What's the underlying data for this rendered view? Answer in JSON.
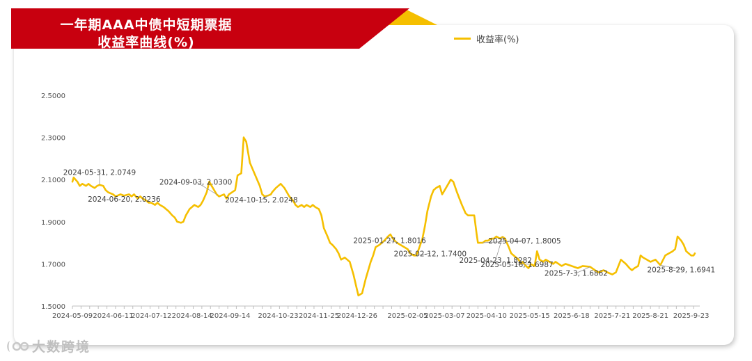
{
  "header": {
    "title_line1": "一年期AAA中债中短期票据",
    "title_line2": "收益率曲线(%)",
    "banner_color": "#C8000F",
    "banner_accent": "#F5BF00"
  },
  "watermark": {
    "text": "大数跨境"
  },
  "chart_data": {
    "type": "line",
    "series": [
      {
        "name": "收益率(%)",
        "color": "#F5BF00",
        "values": [
          [
            "2024-05-09",
            2.09
          ],
          [
            "2024-05-10",
            2.11
          ],
          [
            "2024-05-13",
            2.09
          ],
          [
            "2024-05-15",
            2.07
          ],
          [
            "2024-05-17",
            2.08
          ],
          [
            "2024-05-20",
            2.07
          ],
          [
            "2024-05-22",
            2.08
          ],
          [
            "2024-05-24",
            2.07
          ],
          [
            "2024-05-27",
            2.06
          ],
          [
            "2024-05-29",
            2.07
          ],
          [
            "2024-05-31",
            2.0749
          ],
          [
            "2024-06-03",
            2.07
          ],
          [
            "2024-06-05",
            2.05
          ],
          [
            "2024-06-07",
            2.04
          ],
          [
            "2024-06-11",
            2.03
          ],
          [
            "2024-06-13",
            2.02
          ],
          [
            "2024-06-17",
            2.03
          ],
          [
            "2024-06-20",
            2.0236
          ],
          [
            "2024-06-24",
            2.03
          ],
          [
            "2024-06-26",
            2.02
          ],
          [
            "2024-06-28",
            2.03
          ],
          [
            "2024-07-01",
            2.01
          ],
          [
            "2024-07-03",
            2.02
          ],
          [
            "2024-07-05",
            2.01
          ],
          [
            "2024-07-08",
            2.0
          ],
          [
            "2024-07-10",
            1.99
          ],
          [
            "2024-07-12",
            1.99
          ],
          [
            "2024-07-15",
            1.98
          ],
          [
            "2024-07-17",
            1.99
          ],
          [
            "2024-07-19",
            1.98
          ],
          [
            "2024-07-22",
            1.97
          ],
          [
            "2024-07-24",
            1.96
          ],
          [
            "2024-07-26",
            1.95
          ],
          [
            "2024-07-29",
            1.93
          ],
          [
            "2024-07-31",
            1.92
          ],
          [
            "2024-08-02",
            1.9
          ],
          [
            "2024-08-05",
            1.895
          ],
          [
            "2024-08-07",
            1.9
          ],
          [
            "2024-08-09",
            1.93
          ],
          [
            "2024-08-12",
            1.96
          ],
          [
            "2024-08-14",
            1.97
          ],
          [
            "2024-08-16",
            1.98
          ],
          [
            "2024-08-19",
            1.97
          ],
          [
            "2024-08-21",
            1.98
          ],
          [
            "2024-08-23",
            2.0
          ],
          [
            "2024-08-26",
            2.04
          ],
          [
            "2024-08-28",
            2.09
          ],
          [
            "2024-08-30",
            2.07
          ],
          [
            "2024-09-03",
            2.03
          ],
          [
            "2024-09-05",
            2.02
          ],
          [
            "2024-09-09",
            2.03
          ],
          [
            "2024-09-11",
            2.01
          ],
          [
            "2024-09-13",
            2.03
          ],
          [
            "2024-09-18",
            2.05
          ],
          [
            "2024-09-20",
            2.12
          ],
          [
            "2024-09-23",
            2.13
          ],
          [
            "2024-09-25",
            2.3
          ],
          [
            "2024-09-27",
            2.28
          ],
          [
            "2024-09-30",
            2.18
          ],
          [
            "2024-10-08",
            2.07
          ],
          [
            "2024-10-10",
            2.03
          ],
          [
            "2024-10-12",
            2.02
          ],
          [
            "2024-10-15",
            2.0248
          ],
          [
            "2024-10-17",
            2.03
          ],
          [
            "2024-10-18",
            2.04
          ],
          [
            "2024-10-21",
            2.06
          ],
          [
            "2024-10-23",
            2.07
          ],
          [
            "2024-10-25",
            2.08
          ],
          [
            "2024-10-28",
            2.06
          ],
          [
            "2024-10-30",
            2.04
          ],
          [
            "2024-11-01",
            2.02
          ],
          [
            "2024-11-04",
            2.0
          ],
          [
            "2024-11-06",
            1.98
          ],
          [
            "2024-11-08",
            1.97
          ],
          [
            "2024-11-11",
            1.98
          ],
          [
            "2024-11-13",
            1.97
          ],
          [
            "2024-11-15",
            1.98
          ],
          [
            "2024-11-18",
            1.97
          ],
          [
            "2024-11-20",
            1.98
          ],
          [
            "2024-11-22",
            1.97
          ],
          [
            "2024-11-25",
            1.96
          ],
          [
            "2024-11-27",
            1.93
          ],
          [
            "2024-11-29",
            1.87
          ],
          [
            "2024-12-02",
            1.83
          ],
          [
            "2024-12-04",
            1.8
          ],
          [
            "2024-12-06",
            1.79
          ],
          [
            "2024-12-09",
            1.77
          ],
          [
            "2024-12-11",
            1.75
          ],
          [
            "2024-12-13",
            1.72
          ],
          [
            "2024-12-16",
            1.73
          ],
          [
            "2024-12-18",
            1.72
          ],
          [
            "2024-12-20",
            1.71
          ],
          [
            "2024-12-23",
            1.65
          ],
          [
            "2024-12-25",
            1.6
          ],
          [
            "2024-12-27",
            1.55
          ],
          [
            "2024-12-30",
            1.56
          ],
          [
            "2025-01-02",
            1.63
          ],
          [
            "2025-01-06",
            1.71
          ],
          [
            "2025-01-08",
            1.74
          ],
          [
            "2025-01-10",
            1.78
          ],
          [
            "2025-01-13",
            1.79
          ],
          [
            "2025-01-15",
            1.8
          ],
          [
            "2025-01-17",
            1.81
          ],
          [
            "2025-01-20",
            1.83
          ],
          [
            "2025-01-22",
            1.84
          ],
          [
            "2025-01-24",
            1.82
          ],
          [
            "2025-01-27",
            1.8016
          ],
          [
            "2025-02-05",
            1.77
          ],
          [
            "2025-02-07",
            1.75
          ],
          [
            "2025-02-10",
            1.74
          ],
          [
            "2025-02-12",
            1.74
          ],
          [
            "2025-02-14",
            1.77
          ],
          [
            "2025-02-17",
            1.82
          ],
          [
            "2025-02-19",
            1.88
          ],
          [
            "2025-02-21",
            1.95
          ],
          [
            "2025-02-24",
            2.02
          ],
          [
            "2025-02-26",
            2.05
          ],
          [
            "2025-02-28",
            2.06
          ],
          [
            "2025-03-03",
            2.07
          ],
          [
            "2025-03-05",
            2.03
          ],
          [
            "2025-03-07",
            2.05
          ],
          [
            "2025-03-10",
            2.08
          ],
          [
            "2025-03-12",
            2.1
          ],
          [
            "2025-03-14",
            2.09
          ],
          [
            "2025-03-17",
            2.04
          ],
          [
            "2025-03-19",
            2.01
          ],
          [
            "2025-03-21",
            1.98
          ],
          [
            "2025-03-24",
            1.94
          ],
          [
            "2025-03-26",
            1.93
          ],
          [
            "2025-03-28",
            1.93
          ],
          [
            "2025-03-31",
            1.93
          ],
          [
            "2025-04-02",
            1.84
          ],
          [
            "2025-04-03",
            1.8
          ],
          [
            "2025-04-07",
            1.8005
          ],
          [
            "2025-04-09",
            1.81
          ],
          [
            "2025-04-11",
            1.81
          ],
          [
            "2025-04-14",
            1.82
          ],
          [
            "2025-04-16",
            1.82
          ],
          [
            "2025-04-18",
            1.83
          ],
          [
            "2025-04-21",
            1.82
          ],
          [
            "2025-04-23",
            1.8282
          ],
          [
            "2025-04-25",
            1.82
          ],
          [
            "2025-04-28",
            1.78
          ],
          [
            "2025-04-30",
            1.75
          ],
          [
            "2025-05-06",
            1.72
          ],
          [
            "2025-05-08",
            1.7
          ],
          [
            "2025-05-09",
            1.71
          ],
          [
            "2025-05-12",
            1.69
          ],
          [
            "2025-05-14",
            1.68
          ],
          [
            "2025-05-16",
            1.6987
          ],
          [
            "2025-05-19",
            1.69
          ],
          [
            "2025-05-21",
            1.76
          ],
          [
            "2025-05-23",
            1.72
          ],
          [
            "2025-05-26",
            1.71
          ],
          [
            "2025-05-28",
            1.72
          ],
          [
            "2025-06-03",
            1.7
          ],
          [
            "2025-06-05",
            1.71
          ],
          [
            "2025-06-10",
            1.69
          ],
          [
            "2025-06-13",
            1.7
          ],
          [
            "2025-06-18",
            1.69
          ],
          [
            "2025-06-23",
            1.68
          ],
          [
            "2025-06-27",
            1.69
          ],
          [
            "2025-07-03",
            1.6862
          ],
          [
            "2025-07-07",
            1.67
          ],
          [
            "2025-07-10",
            1.66
          ],
          [
            "2025-07-14",
            1.67
          ],
          [
            "2025-07-17",
            1.66
          ],
          [
            "2025-07-21",
            1.65
          ],
          [
            "2025-07-24",
            1.66
          ],
          [
            "2025-07-28",
            1.72
          ],
          [
            "2025-07-30",
            1.71
          ],
          [
            "2025-08-01",
            1.7
          ],
          [
            "2025-08-04",
            1.68
          ],
          [
            "2025-08-06",
            1.67
          ],
          [
            "2025-08-08",
            1.68
          ],
          [
            "2025-08-11",
            1.69
          ],
          [
            "2025-08-13",
            1.74
          ],
          [
            "2025-08-15",
            1.73
          ],
          [
            "2025-08-18",
            1.72
          ],
          [
            "2025-08-21",
            1.71
          ],
          [
            "2025-08-25",
            1.72
          ],
          [
            "2025-08-29",
            1.6941
          ],
          [
            "2025-09-02",
            1.74
          ],
          [
            "2025-09-05",
            1.75
          ],
          [
            "2025-09-08",
            1.76
          ],
          [
            "2025-09-10",
            1.77
          ],
          [
            "2025-09-12",
            1.83
          ],
          [
            "2025-09-15",
            1.81
          ],
          [
            "2025-09-17",
            1.79
          ],
          [
            "2025-09-19",
            1.76
          ],
          [
            "2025-09-23",
            1.74
          ],
          [
            "2025-09-25",
            1.74
          ],
          [
            "2025-09-26",
            1.75
          ]
        ]
      }
    ],
    "ylim": [
      1.5,
      2.5
    ],
    "yticks": [
      "2.5000",
      "2.3000",
      "2.1000",
      "1.9000",
      "1.7000",
      "1.5000"
    ],
    "xticks": [
      [
        "2024-05-09",
        "2024-05-09"
      ],
      [
        "2024-06-11",
        "2024-06-11"
      ],
      [
        "2024-07-12",
        "2024-07-12"
      ],
      [
        "2024-08-14",
        "2024-08-14"
      ],
      [
        "2024-09-14",
        "2024-09-14"
      ],
      [
        "2024-10-23",
        "2024-10-23"
      ],
      [
        "2024-11-25",
        "2024-11-25"
      ],
      [
        "2024-12-26",
        "2024-12-26"
      ],
      [
        "2025-02-05",
        "2025-02-05"
      ],
      [
        "2025-03-07",
        "2025-03-07"
      ],
      [
        "2025-04-10",
        "2025-04-10"
      ],
      [
        "2025-05-15",
        "2025-05-15"
      ],
      [
        "2025-06-18",
        "2025-6-18"
      ],
      [
        "2025-07-21",
        "2025-7-21"
      ],
      [
        "2025-08-21",
        "2025-8-21"
      ],
      [
        "2025-09-23",
        "2025-9-23"
      ]
    ],
    "annotations": [
      {
        "x": "2024-05-31",
        "y": 2.0749,
        "text": "2024-05-31, 2.0749",
        "dx": 0,
        "dy": 0.05
      },
      {
        "x": "2024-06-20",
        "y": 2.0236,
        "text": "2024-06-20, 2.0236",
        "dx": 0,
        "dy": -0.025
      },
      {
        "x": "2024-09-03",
        "y": 2.03,
        "text": "2024-09-03, 2.0300",
        "dx": -30,
        "dy": 0.05
      },
      {
        "x": "2024-10-15",
        "y": 2.0248,
        "text": "2024-10-15, 2.0248",
        "dx": -10,
        "dy": -0.03
      },
      {
        "x": "2025-01-27",
        "y": 1.8016,
        "text": "2025-01-27, 1.8016",
        "dx": -10,
        "dy": 0.0
      },
      {
        "x": "2025-02-12",
        "y": 1.74,
        "text": "2025-02-12, 1.7400",
        "dx": 20,
        "dy": 0.0
      },
      {
        "x": "2025-04-23",
        "y": 1.8282,
        "text": "2025-04-23, 1.8282",
        "dx": -10,
        "dy": -0.12
      },
      {
        "x": "2025-04-07",
        "y": 1.8005,
        "text": "2025-04-07, 1.8005",
        "dx": 60,
        "dy": 0.0
      },
      {
        "x": "2025-05-16",
        "y": 1.6987,
        "text": "2025-05-16, 1.6987",
        "dx": -20,
        "dy": -0.01
      },
      {
        "x": "2025-07-03",
        "y": 1.6862,
        "text": "2025-7-3, 1.6862",
        "dx": -20,
        "dy": -0.04
      },
      {
        "x": "2025-08-29",
        "y": 1.6941,
        "text": "2025-8-29, 1.6941",
        "dx": 30,
        "dy": -0.03
      }
    ],
    "grid": false,
    "legend": "top-center"
  }
}
